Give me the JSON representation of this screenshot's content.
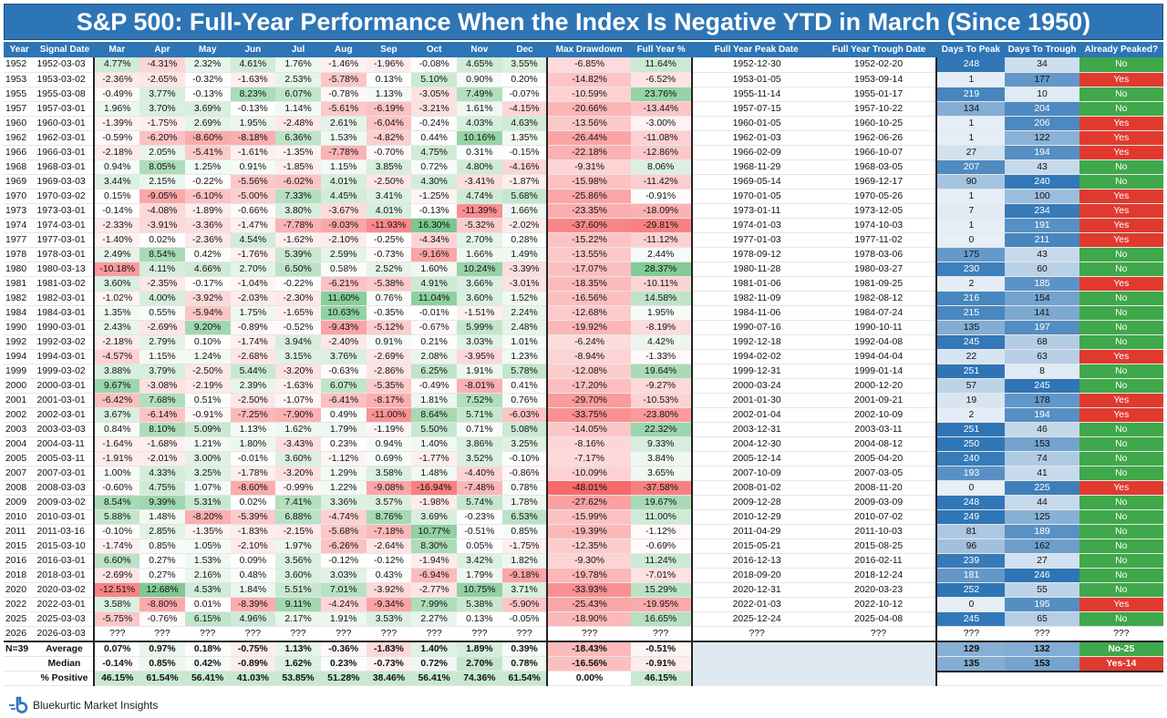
{
  "title": "S&P 500: Full-Year Performance When the Index Is Negative YTD in March (Since 1950)",
  "brand": "Bluekurtic Market Insights",
  "headers": [
    "Year",
    "Signal Date",
    "Mar",
    "Apr",
    "May",
    "Jun",
    "Jul",
    "Aug",
    "Sep",
    "Oct",
    "Nov",
    "Dec",
    "Max Drawdown",
    "Full Year %",
    "Full Year Peak Date",
    "Full Year Trough Date",
    "Days To Peak",
    "Days To Trough",
    "Already Peaked?"
  ],
  "rows": [
    [
      "1952",
      "1952-03-03",
      "4.77%",
      "-4.31%",
      "2.32%",
      "4.61%",
      "1.76%",
      "-1.46%",
      "-1.96%",
      "-0.08%",
      "4.65%",
      "3.55%",
      "-6.85%",
      "11.64%",
      "1952-12-30",
      "1952-02-20",
      "248",
      "34",
      "No"
    ],
    [
      "1953",
      "1953-03-02",
      "-2.36%",
      "-2.65%",
      "-0.32%",
      "-1.63%",
      "2.53%",
      "-5.78%",
      "0.13%",
      "5.10%",
      "0.90%",
      "0.20%",
      "-14.82%",
      "-6.52%",
      "1953-01-05",
      "1953-09-14",
      "1",
      "177",
      "Yes"
    ],
    [
      "1955",
      "1955-03-08",
      "-0.49%",
      "3.77%",
      "-0.13%",
      "8.23%",
      "6.07%",
      "-0.78%",
      "1.13%",
      "-3.05%",
      "7.49%",
      "-0.07%",
      "-10.59%",
      "23.76%",
      "1955-11-14",
      "1955-01-17",
      "219",
      "10",
      "No"
    ],
    [
      "1957",
      "1957-03-01",
      "1.96%",
      "3.70%",
      "3.69%",
      "-0.13%",
      "1.14%",
      "-5.61%",
      "-6.19%",
      "-3.21%",
      "1.61%",
      "-4.15%",
      "-20.66%",
      "-13.44%",
      "1957-07-15",
      "1957-10-22",
      "134",
      "204",
      "No"
    ],
    [
      "1960",
      "1960-03-01",
      "-1.39%",
      "-1.75%",
      "2.69%",
      "1.95%",
      "-2.48%",
      "2.61%",
      "-6.04%",
      "-0.24%",
      "4.03%",
      "4.63%",
      "-13.56%",
      "-3.00%",
      "1960-01-05",
      "1960-10-25",
      "1",
      "206",
      "Yes"
    ],
    [
      "1962",
      "1962-03-01",
      "-0.59%",
      "-6.20%",
      "-8.60%",
      "-8.18%",
      "6.36%",
      "1.53%",
      "-4.82%",
      "0.44%",
      "10.16%",
      "1.35%",
      "-26.44%",
      "-11.08%",
      "1962-01-03",
      "1962-06-26",
      "1",
      "122",
      "Yes"
    ],
    [
      "1966",
      "1966-03-01",
      "-2.18%",
      "2.05%",
      "-5.41%",
      "-1.61%",
      "-1.35%",
      "-7.78%",
      "-0.70%",
      "4.75%",
      "0.31%",
      "-0.15%",
      "-22.18%",
      "-12.86%",
      "1966-02-09",
      "1966-10-07",
      "27",
      "194",
      "Yes"
    ],
    [
      "1968",
      "1968-03-01",
      "0.94%",
      "8.05%",
      "1.25%",
      "0.91%",
      "-1.85%",
      "1.15%",
      "3.85%",
      "0.72%",
      "4.80%",
      "-4.16%",
      "-9.31%",
      "8.06%",
      "1968-11-29",
      "1968-03-05",
      "207",
      "43",
      "No"
    ],
    [
      "1969",
      "1969-03-03",
      "3.44%",
      "2.15%",
      "-0.22%",
      "-5.56%",
      "-6.02%",
      "4.01%",
      "-2.50%",
      "4.30%",
      "-3.41%",
      "-1.87%",
      "-15.98%",
      "-11.42%",
      "1969-05-14",
      "1969-12-17",
      "90",
      "240",
      "No"
    ],
    [
      "1970",
      "1970-03-02",
      "0.15%",
      "-9.05%",
      "-6.10%",
      "-5.00%",
      "7.33%",
      "4.45%",
      "3.41%",
      "-1.25%",
      "4.74%",
      "5.68%",
      "-25.86%",
      "-0.91%",
      "1970-01-05",
      "1970-05-26",
      "1",
      "100",
      "Yes"
    ],
    [
      "1973",
      "1973-03-01",
      "-0.14%",
      "-4.08%",
      "-1.89%",
      "-0.66%",
      "3.80%",
      "-3.67%",
      "4.01%",
      "-0.13%",
      "-11.39%",
      "1.66%",
      "-23.35%",
      "-18.09%",
      "1973-01-11",
      "1973-12-05",
      "7",
      "234",
      "Yes"
    ],
    [
      "1974",
      "1974-03-01",
      "-2.33%",
      "-3.91%",
      "-3.36%",
      "-1.47%",
      "-7.78%",
      "-9.03%",
      "-11.93%",
      "16.30%",
      "-5.32%",
      "-2.02%",
      "-37.60%",
      "-29.81%",
      "1974-01-03",
      "1974-10-03",
      "1",
      "191",
      "Yes"
    ],
    [
      "1977",
      "1977-03-01",
      "-1.40%",
      "0.02%",
      "-2.36%",
      "4.54%",
      "-1.62%",
      "-2.10%",
      "-0.25%",
      "-4.34%",
      "2.70%",
      "0.28%",
      "-15.22%",
      "-11.12%",
      "1977-01-03",
      "1977-11-02",
      "0",
      "211",
      "Yes"
    ],
    [
      "1978",
      "1978-03-01",
      "2.49%",
      "8.54%",
      "0.42%",
      "-1.76%",
      "5.39%",
      "2.59%",
      "-0.73%",
      "-9.16%",
      "1.66%",
      "1.49%",
      "-13.55%",
      "2.44%",
      "1978-09-12",
      "1978-03-06",
      "175",
      "43",
      "No"
    ],
    [
      "1980",
      "1980-03-13",
      "-10.18%",
      "4.11%",
      "4.66%",
      "2.70%",
      "6.50%",
      "0.58%",
      "2.52%",
      "1.60%",
      "10.24%",
      "-3.39%",
      "-17.07%",
      "28.37%",
      "1980-11-28",
      "1980-03-27",
      "230",
      "60",
      "No"
    ],
    [
      "1981",
      "1981-03-02",
      "3.60%",
      "-2.35%",
      "-0.17%",
      "-1.04%",
      "-0.22%",
      "-6.21%",
      "-5.38%",
      "4.91%",
      "3.66%",
      "-3.01%",
      "-18.35%",
      "-10.11%",
      "1981-01-06",
      "1981-09-25",
      "2",
      "185",
      "Yes"
    ],
    [
      "1982",
      "1982-03-01",
      "-1.02%",
      "4.00%",
      "-3.92%",
      "-2.03%",
      "-2.30%",
      "11.60%",
      "0.76%",
      "11.04%",
      "3.60%",
      "1.52%",
      "-16.56%",
      "14.58%",
      "1982-11-09",
      "1982-08-12",
      "216",
      "154",
      "No"
    ],
    [
      "1984",
      "1984-03-01",
      "1.35%",
      "0.55%",
      "-5.94%",
      "1.75%",
      "-1.65%",
      "10.63%",
      "-0.35%",
      "-0.01%",
      "-1.51%",
      "2.24%",
      "-12.68%",
      "1.95%",
      "1984-11-06",
      "1984-07-24",
      "215",
      "141",
      "No"
    ],
    [
      "1990",
      "1990-03-01",
      "2.43%",
      "-2.69%",
      "9.20%",
      "-0.89%",
      "-0.52%",
      "-9.43%",
      "-5.12%",
      "-0.67%",
      "5.99%",
      "2.48%",
      "-19.92%",
      "-8.19%",
      "1990-07-16",
      "1990-10-11",
      "135",
      "197",
      "No"
    ],
    [
      "1992",
      "1992-03-02",
      "-2.18%",
      "2.79%",
      "0.10%",
      "-1.74%",
      "3.94%",
      "-2.40%",
      "0.91%",
      "0.21%",
      "3.03%",
      "1.01%",
      "-6.24%",
      "4.42%",
      "1992-12-18",
      "1992-04-08",
      "245",
      "68",
      "No"
    ],
    [
      "1994",
      "1994-03-01",
      "-4.57%",
      "1.15%",
      "1.24%",
      "-2.68%",
      "3.15%",
      "3.76%",
      "-2.69%",
      "2.08%",
      "-3.95%",
      "1.23%",
      "-8.94%",
      "-1.33%",
      "1994-02-02",
      "1994-04-04",
      "22",
      "63",
      "Yes"
    ],
    [
      "1999",
      "1999-03-02",
      "3.88%",
      "3.79%",
      "-2.50%",
      "5.44%",
      "-3.20%",
      "-0.63%",
      "-2.86%",
      "6.25%",
      "1.91%",
      "5.78%",
      "-12.08%",
      "19.64%",
      "1999-12-31",
      "1999-01-14",
      "251",
      "8",
      "No"
    ],
    [
      "2000",
      "2000-03-01",
      "9.67%",
      "-3.08%",
      "-2.19%",
      "2.39%",
      "-1.63%",
      "6.07%",
      "-5.35%",
      "-0.49%",
      "-8.01%",
      "0.41%",
      "-17.20%",
      "-9.27%",
      "2000-03-24",
      "2000-12-20",
      "57",
      "245",
      "No"
    ],
    [
      "2001",
      "2001-03-01",
      "-6.42%",
      "7.68%",
      "0.51%",
      "-2.50%",
      "-1.07%",
      "-6.41%",
      "-8.17%",
      "1.81%",
      "7.52%",
      "0.76%",
      "-29.70%",
      "-10.53%",
      "2001-01-30",
      "2001-09-21",
      "19",
      "178",
      "Yes"
    ],
    [
      "2002",
      "2002-03-01",
      "3.67%",
      "-6.14%",
      "-0.91%",
      "-7.25%",
      "-7.90%",
      "0.49%",
      "-11.00%",
      "8.64%",
      "5.71%",
      "-6.03%",
      "-33.75%",
      "-23.80%",
      "2002-01-04",
      "2002-10-09",
      "2",
      "194",
      "Yes"
    ],
    [
      "2003",
      "2003-03-03",
      "0.84%",
      "8.10%",
      "5.09%",
      "1.13%",
      "1.62%",
      "1.79%",
      "-1.19%",
      "5.50%",
      "0.71%",
      "5.08%",
      "-14.05%",
      "22.32%",
      "2003-12-31",
      "2003-03-11",
      "251",
      "46",
      "No"
    ],
    [
      "2004",
      "2004-03-11",
      "-1.64%",
      "-1.68%",
      "1.21%",
      "1.80%",
      "-3.43%",
      "0.23%",
      "0.94%",
      "1.40%",
      "3.86%",
      "3.25%",
      "-8.16%",
      "9.33%",
      "2004-12-30",
      "2004-08-12",
      "250",
      "153",
      "No"
    ],
    [
      "2005",
      "2005-03-11",
      "-1.91%",
      "-2.01%",
      "3.00%",
      "-0.01%",
      "3.60%",
      "-1.12%",
      "0.69%",
      "-1.77%",
      "3.52%",
      "-0.10%",
      "-7.17%",
      "3.84%",
      "2005-12-14",
      "2005-04-20",
      "240",
      "74",
      "No"
    ],
    [
      "2007",
      "2007-03-01",
      "1.00%",
      "4.33%",
      "3.25%",
      "-1.78%",
      "-3.20%",
      "1.29%",
      "3.58%",
      "1.48%",
      "-4.40%",
      "-0.86%",
      "-10.09%",
      "3.65%",
      "2007-10-09",
      "2007-03-05",
      "193",
      "41",
      "No"
    ],
    [
      "2008",
      "2008-03-03",
      "-0.60%",
      "4.75%",
      "1.07%",
      "-8.60%",
      "-0.99%",
      "1.22%",
      "-9.08%",
      "-16.94%",
      "-7.48%",
      "0.78%",
      "-48.01%",
      "-37.58%",
      "2008-01-02",
      "2008-11-20",
      "0",
      "225",
      "Yes"
    ],
    [
      "2009",
      "2009-03-02",
      "8.54%",
      "9.39%",
      "5.31%",
      "0.02%",
      "7.41%",
      "3.36%",
      "3.57%",
      "-1.98%",
      "5.74%",
      "1.78%",
      "-27.62%",
      "19.67%",
      "2009-12-28",
      "2009-03-09",
      "248",
      "44",
      "No"
    ],
    [
      "2010",
      "2010-03-01",
      "5.88%",
      "1.48%",
      "-8.20%",
      "-5.39%",
      "6.88%",
      "-4.74%",
      "8.76%",
      "3.69%",
      "-0.23%",
      "6.53%",
      "-15.99%",
      "11.00%",
      "2010-12-29",
      "2010-07-02",
      "249",
      "125",
      "No"
    ],
    [
      "2011",
      "2011-03-16",
      "-0.10%",
      "2.85%",
      "-1.35%",
      "-1.83%",
      "-2.15%",
      "-5.68%",
      "-7.18%",
      "10.77%",
      "-0.51%",
      "0.85%",
      "-19.39%",
      "-1.12%",
      "2011-04-29",
      "2011-10-03",
      "81",
      "189",
      "No"
    ],
    [
      "2015",
      "2015-03-10",
      "-1.74%",
      "0.85%",
      "1.05%",
      "-2.10%",
      "1.97%",
      "-6.26%",
      "-2.64%",
      "8.30%",
      "0.05%",
      "-1.75%",
      "-12.35%",
      "-0.69%",
      "2015-05-21",
      "2015-08-25",
      "96",
      "162",
      "No"
    ],
    [
      "2016",
      "2016-03-01",
      "6.60%",
      "0.27%",
      "1.53%",
      "0.09%",
      "3.56%",
      "-0.12%",
      "-0.12%",
      "-1.94%",
      "3.42%",
      "1.82%",
      "-9.30%",
      "11.24%",
      "2016-12-13",
      "2016-02-11",
      "239",
      "27",
      "No"
    ],
    [
      "2018",
      "2018-03-01",
      "-2.69%",
      "0.27%",
      "2.16%",
      "0.48%",
      "3.60%",
      "3.03%",
      "0.43%",
      "-6.94%",
      "1.79%",
      "-9.18%",
      "-19.78%",
      "-7.01%",
      "2018-09-20",
      "2018-12-24",
      "181",
      "246",
      "No"
    ],
    [
      "2020",
      "2020-03-02",
      "-12.51%",
      "12.68%",
      "4.53%",
      "1.84%",
      "5.51%",
      "7.01%",
      "-3.92%",
      "-2.77%",
      "10.75%",
      "3.71%",
      "-33.93%",
      "15.29%",
      "2020-12-31",
      "2020-03-23",
      "252",
      "55",
      "No"
    ],
    [
      "2022",
      "2022-03-01",
      "3.58%",
      "-8.80%",
      "0.01%",
      "-8.39%",
      "9.11%",
      "-4.24%",
      "-9.34%",
      "7.99%",
      "5.38%",
      "-5.90%",
      "-25.43%",
      "-19.95%",
      "2022-01-03",
      "2022-10-12",
      "0",
      "195",
      "Yes"
    ],
    [
      "2025",
      "2025-03-03",
      "-5.75%",
      "-0.76%",
      "6.15%",
      "4.96%",
      "2.17%",
      "1.91%",
      "3.53%",
      "2.27%",
      "0.13%",
      "-0.05%",
      "-18.90%",
      "16.65%",
      "2025-12-24",
      "2025-04-08",
      "245",
      "65",
      "No"
    ],
    [
      "2026",
      "2026-03-03",
      "???",
      "???",
      "???",
      "???",
      "???",
      "???",
      "???",
      "???",
      "???",
      "???",
      "???",
      "???",
      "???",
      "???",
      "???",
      "???",
      "???"
    ]
  ],
  "summary": {
    "n_label": "N=39",
    "average": {
      "label": "Average",
      "values": [
        "0.07%",
        "0.97%",
        "0.18%",
        "-0.75%",
        "1.13%",
        "-0.36%",
        "-1.83%",
        "1.40%",
        "1.89%",
        "0.39%",
        "-18.43%",
        "-0.51%"
      ],
      "days_peak": "129",
      "days_trough": "132",
      "peaked": "No-25"
    },
    "median": {
      "label": "Median",
      "values": [
        "-0.14%",
        "0.85%",
        "0.42%",
        "-0.89%",
        "1.62%",
        "0.23%",
        "-0.73%",
        "0.72%",
        "2.70%",
        "0.78%",
        "-16.56%",
        "-0.91%"
      ],
      "days_peak": "135",
      "days_trough": "153",
      "peaked": "Yes-14"
    },
    "positive": {
      "label": "% Positive",
      "values": [
        "46.15%",
        "61.54%",
        "56.41%",
        "41.03%",
        "53.85%",
        "51.28%",
        "38.46%",
        "56.41%",
        "74.36%",
        "61.54%",
        "0.00%",
        "46.15%"
      ]
    }
  },
  "colors": {
    "header_blue": "#2e75b6",
    "positive": "#63be7b",
    "negative": "#f8696b",
    "neutral": "#ffffff",
    "peaked_yes": "#e03a2f",
    "peaked_no": "#3fa84a",
    "days_blue": "#2e75b6"
  }
}
